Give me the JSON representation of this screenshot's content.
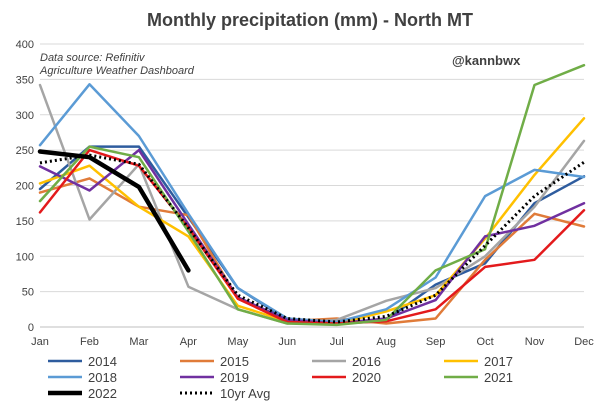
{
  "chart_data": {
    "type": "line",
    "title": "Monthly precipitation (mm) - North MT",
    "annotations": {
      "source_line1": "Data source: Refinitiv",
      "source_line2": "Agriculture Weather Dashboard",
      "handle": "@kannbwx"
    },
    "categories": [
      "Jan",
      "Feb",
      "Mar",
      "Apr",
      "May",
      "Jun",
      "Jul",
      "Aug",
      "Sep",
      "Oct",
      "Nov",
      "Dec"
    ],
    "ylim": [
      0,
      400
    ],
    "yticks": [
      0,
      50,
      100,
      150,
      200,
      250,
      300,
      350,
      400
    ],
    "grid": true,
    "legend_placement": "bottom",
    "series": [
      {
        "name": "2014",
        "color": "#2e5c9e",
        "width": 2.5,
        "dash": "",
        "values": [
          195,
          255,
          255,
          155,
          55,
          10,
          5,
          10,
          60,
          90,
          175,
          213
        ]
      },
      {
        "name": "2015",
        "color": "#e07b39",
        "width": 2.5,
        "dash": "",
        "values": [
          190,
          210,
          170,
          158,
          40,
          8,
          12,
          5,
          12,
          95,
          160,
          142
        ]
      },
      {
        "name": "2016",
        "color": "#a5a5a5",
        "width": 2.5,
        "dash": "",
        "values": [
          342,
          152,
          230,
          57,
          25,
          5,
          10,
          37,
          55,
          100,
          170,
          263
        ]
      },
      {
        "name": "2017",
        "color": "#ffc000",
        "width": 2.5,
        "dash": "",
        "values": [
          203,
          228,
          170,
          128,
          30,
          8,
          5,
          22,
          45,
          125,
          215,
          295
        ]
      },
      {
        "name": "2018",
        "color": "#5b9bd5",
        "width": 2.5,
        "dash": "",
        "values": [
          257,
          343,
          270,
          160,
          55,
          12,
          7,
          25,
          70,
          185,
          222,
          212
        ]
      },
      {
        "name": "2019",
        "color": "#7030a0",
        "width": 2.5,
        "dash": "",
        "values": [
          227,
          193,
          250,
          145,
          42,
          10,
          5,
          12,
          38,
          128,
          143,
          175
        ]
      },
      {
        "name": "2020",
        "color": "#e31a1c",
        "width": 2.5,
        "dash": "",
        "values": [
          162,
          250,
          228,
          140,
          40,
          7,
          5,
          8,
          25,
          85,
          95,
          165
        ]
      },
      {
        "name": "2021",
        "color": "#70ad47",
        "width": 2.5,
        "dash": "",
        "values": [
          178,
          255,
          240,
          135,
          25,
          5,
          3,
          10,
          80,
          110,
          342,
          370
        ]
      },
      {
        "name": "2022",
        "color": "#000000",
        "width": 4.5,
        "dash": "",
        "values": [
          248,
          240,
          198,
          80,
          null,
          null,
          null,
          null,
          null,
          null,
          null,
          null
        ]
      },
      {
        "name": "10yr Avg",
        "color": "#000000",
        "width": 3,
        "dash": "2,3",
        "values": [
          232,
          243,
          230,
          140,
          45,
          12,
          7,
          15,
          45,
          115,
          185,
          233
        ]
      }
    ]
  }
}
